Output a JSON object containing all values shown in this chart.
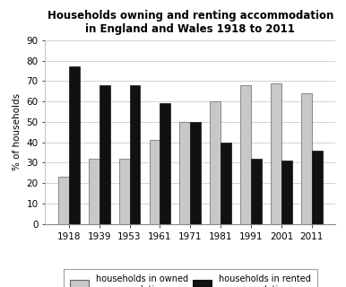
{
  "title_line1": "Households owning and renting accommodation",
  "title_line2": "in England and Wales 1918 to 2011",
  "years": [
    "1918",
    "1939",
    "1953",
    "1961",
    "1971",
    "1981",
    "1991",
    "2001",
    "2011"
  ],
  "owned": [
    23,
    32,
    32,
    41,
    50,
    60,
    68,
    69,
    64
  ],
  "rented": [
    77,
    68,
    68,
    59,
    50,
    40,
    32,
    31,
    36
  ],
  "owned_color": "#c8c8c8",
  "rented_color": "#111111",
  "ylabel": "% of households",
  "ylim": [
    0,
    90
  ],
  "yticks": [
    0,
    10,
    20,
    30,
    40,
    50,
    60,
    70,
    80,
    90
  ],
  "bar_width": 0.35,
  "legend_owned": "households in owned\naccommodation",
  "legend_rented": "households in rented\naccommodation",
  "title_fontsize": 8.5,
  "axis_fontsize": 7.5,
  "ylabel_fontsize": 7.5,
  "legend_fontsize": 7.0,
  "background_color": "#ffffff"
}
